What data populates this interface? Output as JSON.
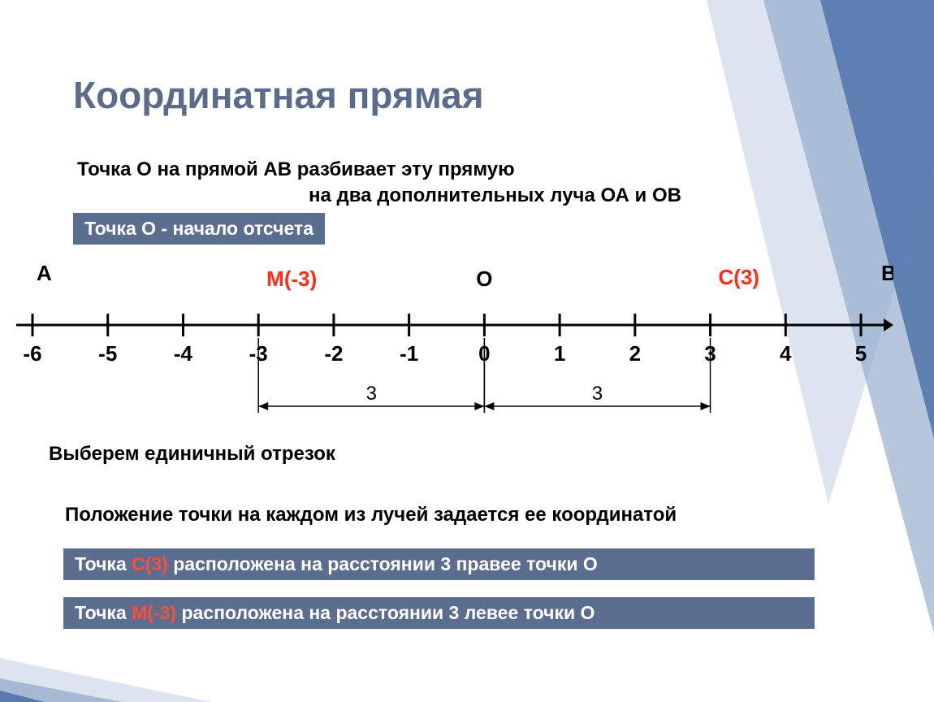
{
  "title": "Координатная прямая",
  "intro_line1": "Точка  О  на прямой  АВ  разбивает эту прямую",
  "intro_line2": "на два дополнительных луча  ОА  и  ОВ",
  "origin_box": "Точка  О   -   начало отсчета",
  "unit_segment": "Выберем единичный отрезок",
  "position_text": "Положение точки на каждом из лучей задается ее координатой",
  "box_c_pre": "Точка  ",
  "box_c_red": "С(3)",
  "box_c_post": "  расположена на расстоянии  3  правее точки О",
  "box_m_pre": "Точка  ",
  "box_m_red": "М(-3)",
  "box_m_post": "  расположена на расстоянии  3  левее точки О",
  "numline": {
    "start": -6,
    "end": 5,
    "ticks": [
      "-6",
      "-5",
      "-4",
      "-3",
      "-2",
      "-1",
      "0",
      "1",
      "2",
      "3",
      "4",
      "5"
    ],
    "label_A": "А",
    "label_B": "В",
    "label_O": "О",
    "point_M": {
      "x": -3,
      "label": "М(-3)",
      "color": "#ff2a18"
    },
    "point_C": {
      "x": 3,
      "label": "С(3)",
      "color": "#ff2a18"
    },
    "dist_left": {
      "from": -3,
      "to": 0,
      "label": "3"
    },
    "dist_right": {
      "from": 0,
      "to": 3,
      "label": "3"
    },
    "axis_color": "#000000",
    "tick_fontsize": 26,
    "point_label_fontsize": 26,
    "endlabel_fontsize": 26,
    "dist_label_fontsize": 24
  },
  "colors": {
    "title": "#5b6b8c",
    "box_bg": "#5b6e8f",
    "box_fg": "#ffffff",
    "deco1": "#4a6fa8",
    "deco2": "#8fa7c9",
    "deco3": "#c0cee2",
    "red": "#ff2a18"
  }
}
